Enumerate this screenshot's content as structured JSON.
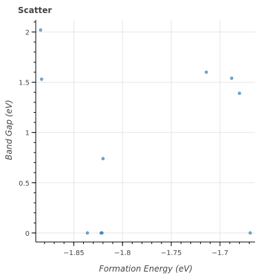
{
  "chart_data": {
    "type": "scatter",
    "title": "Scatter",
    "xlabel": "Formation Energy (eV)",
    "ylabel": "Band Gap (eV)",
    "xlim": [
      -1.889,
      -1.664
    ],
    "ylim": [
      -0.09,
      2.12
    ],
    "grid": true,
    "x_ticks": [
      -1.85,
      -1.8,
      -1.75,
      -1.7
    ],
    "x_tick_labels": [
      "−1.85",
      "−1.8",
      "−1.75",
      "−1.7"
    ],
    "y_ticks": [
      0,
      0.5,
      1,
      1.5,
      2
    ],
    "y_tick_labels": [
      "0",
      "0.5",
      "1",
      "1.5",
      "2"
    ],
    "x_minor_step": 0.01,
    "y_minor_step": 0.1,
    "point_color": "#1f77b4",
    "series": [
      {
        "points": [
          {
            "x": -1.884,
            "y": 2.02
          },
          {
            "x": -1.883,
            "y": 1.53
          },
          {
            "x": -1.836,
            "y": 0.0
          },
          {
            "x": -1.822,
            "y": 0.0
          },
          {
            "x": -1.821,
            "y": 0.0
          },
          {
            "x": -1.82,
            "y": 0.74
          },
          {
            "x": -1.714,
            "y": 1.6
          },
          {
            "x": -1.688,
            "y": 1.54
          },
          {
            "x": -1.68,
            "y": 1.39
          },
          {
            "x": -1.669,
            "y": 0.0
          }
        ]
      }
    ]
  }
}
